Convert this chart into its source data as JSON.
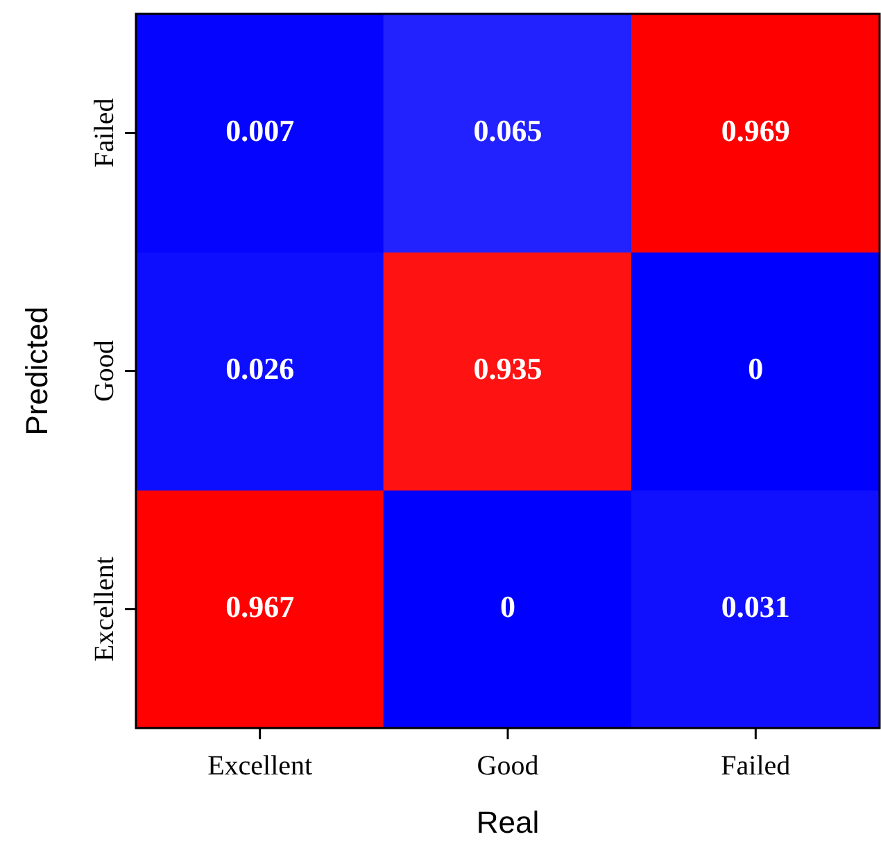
{
  "chart_data": {
    "type": "heatmap",
    "xlabel": "Real",
    "ylabel": "Predicted",
    "categories": [
      "Excellent",
      "Good",
      "Failed"
    ],
    "y_categories": [
      "Failed",
      "Good",
      "Excellent"
    ],
    "cells": [
      [
        0.007,
        0.065,
        0.969
      ],
      [
        0.026,
        0.935,
        0
      ],
      [
        0.967,
        0,
        0.031
      ]
    ],
    "data_labels": true
  }
}
